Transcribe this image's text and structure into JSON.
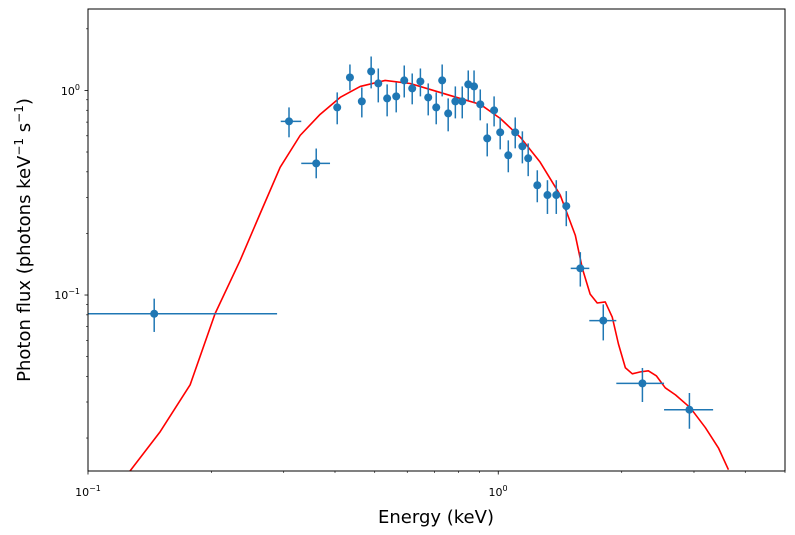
{
  "chart_data": {
    "type": "scatter",
    "title": "",
    "xlabel": "Energy (keV)",
    "ylabel": "Photon flux (photons keV",
    "ylabel_parts": [
      "Photon flux (photons keV",
      "−1",
      " s",
      "−1",
      ")"
    ],
    "xscale": "log",
    "yscale": "log",
    "xlim": [
      0.1,
      5.0
    ],
    "ylim": [
      0.0138,
      2.5
    ],
    "grid": false,
    "legend": "none",
    "x_ticks": [
      {
        "value": 0.1,
        "base": "10",
        "exp": "−1"
      },
      {
        "value": 1.0,
        "base": "10",
        "exp": "0"
      }
    ],
    "y_ticks": [
      {
        "value": 0.1,
        "base": "10",
        "exp": "−1"
      },
      {
        "value": 1.0,
        "base": "10",
        "exp": "0"
      }
    ],
    "colors": {
      "data": "#1f77b4",
      "model": "#ff0000"
    },
    "series": [
      {
        "name": "data",
        "kind": "errorbar",
        "points": [
          {
            "x": 0.145,
            "y": 0.081,
            "xlo": 0.1,
            "xhi": 0.289,
            "ylo": 0.066,
            "yhi": 0.096
          },
          {
            "x": 0.309,
            "y": 0.706,
            "xlo": 0.295,
            "xhi": 0.331,
            "ylo": 0.59,
            "yhi": 0.826
          },
          {
            "x": 0.36,
            "y": 0.44,
            "xlo": 0.331,
            "xhi": 0.389,
            "ylo": 0.372,
            "yhi": 0.52
          },
          {
            "x": 0.405,
            "y": 0.826,
            "xlo": 0.398,
            "xhi": 0.413,
            "ylo": 0.683,
            "yhi": 0.978
          },
          {
            "x": 0.435,
            "y": 1.157,
            "xlo": 0.428,
            "xhi": 0.443,
            "ylo": 1.0,
            "yhi": 1.339
          },
          {
            "x": 0.465,
            "y": 0.884,
            "xlo": 0.458,
            "xhi": 0.472,
            "ylo": 0.738,
            "yhi": 1.034
          },
          {
            "x": 0.49,
            "y": 1.238,
            "xlo": 0.483,
            "xhi": 0.497,
            "ylo": 1.023,
            "yhi": 1.465
          },
          {
            "x": 0.51,
            "y": 1.082,
            "xlo": 0.503,
            "xhi": 0.517,
            "ylo": 0.874,
            "yhi": 1.28
          },
          {
            "x": 0.536,
            "y": 0.914,
            "xlo": 0.529,
            "xhi": 0.543,
            "ylo": 0.747,
            "yhi": 1.07
          },
          {
            "x": 0.564,
            "y": 0.935,
            "xlo": 0.557,
            "xhi": 0.571,
            "ylo": 0.781,
            "yhi": 1.094
          },
          {
            "x": 0.59,
            "y": 1.119,
            "xlo": 0.583,
            "xhi": 0.597,
            "ylo": 0.924,
            "yhi": 1.324
          },
          {
            "x": 0.617,
            "y": 1.023,
            "xlo": 0.61,
            "xhi": 0.624,
            "ylo": 0.855,
            "yhi": 1.21
          },
          {
            "x": 0.646,
            "y": 1.106,
            "xlo": 0.639,
            "xhi": 0.653,
            "ylo": 0.935,
            "yhi": 1.28
          },
          {
            "x": 0.675,
            "y": 0.924,
            "xlo": 0.668,
            "xhi": 0.682,
            "ylo": 0.755,
            "yhi": 1.082
          },
          {
            "x": 0.706,
            "y": 0.826,
            "xlo": 0.699,
            "xhi": 0.713,
            "ylo": 0.683,
            "yhi": 0.978
          },
          {
            "x": 0.73,
            "y": 1.119,
            "xlo": 0.723,
            "xhi": 0.737,
            "ylo": 0.935,
            "yhi": 1.339
          },
          {
            "x": 0.755,
            "y": 0.772,
            "xlo": 0.748,
            "xhi": 0.762,
            "ylo": 0.631,
            "yhi": 0.914
          },
          {
            "x": 0.786,
            "y": 0.884,
            "xlo": 0.779,
            "xhi": 0.793,
            "ylo": 0.73,
            "yhi": 1.046
          },
          {
            "x": 0.817,
            "y": 0.884,
            "xlo": 0.81,
            "xhi": 0.824,
            "ylo": 0.73,
            "yhi": 1.046
          },
          {
            "x": 0.845,
            "y": 1.07,
            "xlo": 0.838,
            "xhi": 0.852,
            "ylo": 0.894,
            "yhi": 1.252
          },
          {
            "x": 0.873,
            "y": 1.046,
            "xlo": 0.866,
            "xhi": 0.88,
            "ylo": 0.874,
            "yhi": 1.252
          },
          {
            "x": 0.904,
            "y": 0.855,
            "xlo": 0.897,
            "xhi": 0.911,
            "ylo": 0.714,
            "yhi": 1.011
          },
          {
            "x": 0.94,
            "y": 0.583,
            "xlo": 0.933,
            "xhi": 0.947,
            "ylo": 0.476,
            "yhi": 0.69
          },
          {
            "x": 0.977,
            "y": 0.799,
            "xlo": 0.97,
            "xhi": 0.984,
            "ylo": 0.667,
            "yhi": 0.935
          },
          {
            "x": 1.011,
            "y": 0.624,
            "xlo": 1.004,
            "xhi": 1.018,
            "ylo": 0.515,
            "yhi": 0.738
          },
          {
            "x": 1.058,
            "y": 0.482,
            "xlo": 1.05,
            "xhi": 1.066,
            "ylo": 0.398,
            "yhi": 0.57
          },
          {
            "x": 1.1,
            "y": 0.624,
            "xlo": 1.092,
            "xhi": 1.108,
            "ylo": 0.521,
            "yhi": 0.738
          },
          {
            "x": 1.145,
            "y": 0.533,
            "xlo": 1.137,
            "xhi": 1.153,
            "ylo": 0.44,
            "yhi": 0.631
          },
          {
            "x": 1.183,
            "y": 0.466,
            "xlo": 1.175,
            "xhi": 1.191,
            "ylo": 0.381,
            "yhi": 0.551
          },
          {
            "x": 1.245,
            "y": 0.344,
            "xlo": 1.236,
            "xhi": 1.254,
            "ylo": 0.284,
            "yhi": 0.407
          },
          {
            "x": 1.318,
            "y": 0.308,
            "xlo": 1.309,
            "xhi": 1.327,
            "ylo": 0.249,
            "yhi": 0.364
          },
          {
            "x": 1.385,
            "y": 0.308,
            "xlo": 1.376,
            "xhi": 1.394,
            "ylo": 0.249,
            "yhi": 0.364
          },
          {
            "x": 1.465,
            "y": 0.272,
            "xlo": 1.455,
            "xhi": 1.475,
            "ylo": 0.217,
            "yhi": 0.322
          },
          {
            "x": 1.585,
            "y": 0.135,
            "xlo": 1.502,
            "xhi": 1.667,
            "ylo": 0.11,
            "yhi": 0.162
          },
          {
            "x": 1.803,
            "y": 0.075,
            "xlo": 1.667,
            "xhi": 1.94,
            "ylo": 0.06,
            "yhi": 0.09
          },
          {
            "x": 2.246,
            "y": 0.037,
            "xlo": 1.94,
            "xhi": 2.536,
            "ylo": 0.03,
            "yhi": 0.044
          },
          {
            "x": 2.924,
            "y": 0.0275,
            "xlo": 2.536,
            "xhi": 3.34,
            "ylo": 0.0222,
            "yhi": 0.0332
          }
        ]
      },
      {
        "name": "model",
        "kind": "line",
        "x": [
          0.1266,
          0.15,
          0.1774,
          0.204,
          0.235,
          0.263,
          0.294,
          0.329,
          0.368,
          0.412,
          0.461,
          0.53,
          0.61,
          0.682,
          0.763,
          0.904,
          1.011,
          1.132,
          1.265,
          1.416,
          1.541,
          1.603,
          1.675,
          1.743,
          1.823,
          1.896,
          1.963,
          2.041,
          2.122,
          2.22,
          2.322,
          2.428,
          2.553,
          2.704,
          2.939,
          3.197,
          3.441,
          3.64
        ],
        "y": [
          0.0138,
          0.0215,
          0.0364,
          0.081,
          0.148,
          0.251,
          0.421,
          0.603,
          0.764,
          0.925,
          1.046,
          1.119,
          1.081,
          1.011,
          0.945,
          0.855,
          0.73,
          0.59,
          0.446,
          0.308,
          0.196,
          0.135,
          0.101,
          0.0914,
          0.0925,
          0.078,
          0.0577,
          0.0441,
          0.0412,
          0.0421,
          0.0426,
          0.0403,
          0.0352,
          0.0325,
          0.0281,
          0.0225,
          0.0179,
          0.014
        ]
      }
    ]
  }
}
